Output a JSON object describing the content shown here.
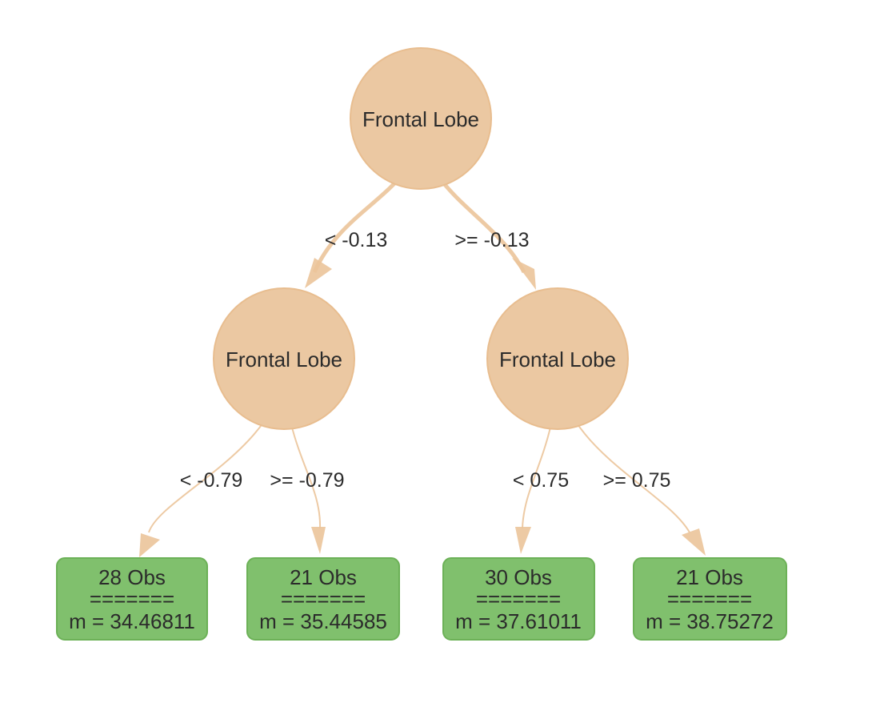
{
  "colors": {
    "split_node_fill": "#ebc8a2",
    "split_node_stroke": "#e8bd8f",
    "leaf_fill": "#80c06d",
    "leaf_stroke": "#6cb157",
    "edge": "#ebc49a",
    "text": "#2b2b2b"
  },
  "nodes": {
    "root": {
      "label": "Frontal Lobe"
    },
    "left": {
      "label": "Frontal Lobe"
    },
    "right": {
      "label": "Frontal Lobe"
    }
  },
  "edges": {
    "root_left": {
      "label": "< -0.13"
    },
    "root_right": {
      "label": ">= -0.13"
    },
    "left_leaf1": {
      "label": "< -0.79"
    },
    "left_leaf2": {
      "label": ">= -0.79"
    },
    "right_leaf3": {
      "label": "< 0.75"
    },
    "right_leaf4": {
      "label": ">= 0.75"
    }
  },
  "leaves": [
    {
      "obs": "28 Obs",
      "separator": "=======",
      "mean": "m = 34.46811"
    },
    {
      "obs": "21 Obs",
      "separator": "=======",
      "mean": "m = 35.44585"
    },
    {
      "obs": "30 Obs",
      "separator": "=======",
      "mean": "m = 37.61011"
    },
    {
      "obs": "21 Obs",
      "separator": "=======",
      "mean": "m = 38.75272"
    }
  ]
}
